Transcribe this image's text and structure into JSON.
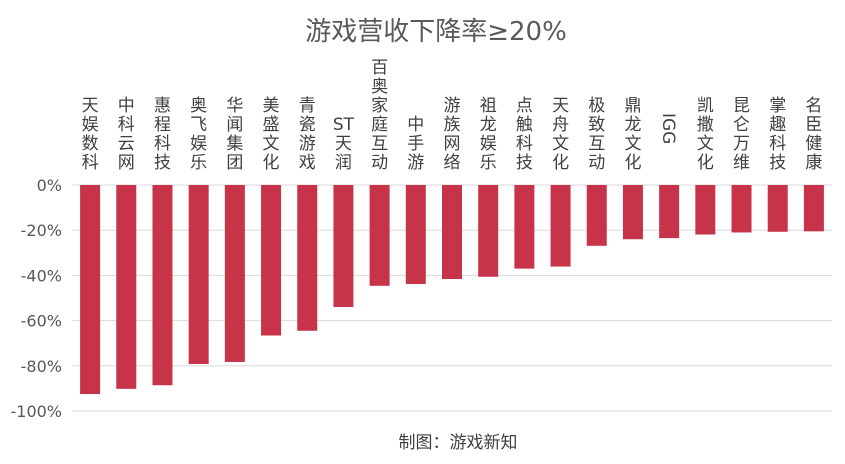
{
  "chart_data": {
    "type": "bar",
    "title": "游戏营收下降率≥20%",
    "credit": "制图：游戏新知",
    "categories": [
      "天娱数科",
      "中科云网",
      "惠程科技",
      "奥飞娱乐",
      "华闻集团",
      "美盛文化",
      "青瓷游戏",
      "ST天润",
      "百奥家庭互动",
      "中手游",
      "游族网络",
      "祖龙娱乐",
      "点触科技",
      "天舟文化",
      "极致互动",
      "鼎龙文化",
      "IGG",
      "凯撒文化",
      "昆仑万维",
      "掌趣科技",
      "名臣健康"
    ],
    "values": [
      -92.5,
      -90.2,
      -88.6,
      -79.2,
      -78.3,
      -66.6,
      -64.5,
      -54.0,
      -44.6,
      -43.8,
      -41.6,
      -40.6,
      -37.0,
      -36.1,
      -26.9,
      -24.0,
      -23.5,
      -21.9,
      -21.0,
      -20.7,
      -20.5
    ],
    "ylim": [
      -100,
      0
    ],
    "yticks": [
      0,
      -20,
      -40,
      -60,
      -80,
      -100
    ],
    "ytick_labels": [
      "0%",
      "-20%",
      "-40%",
      "-60%",
      "-80%",
      "-100%"
    ],
    "bar_color": "#C7344A",
    "grid": true,
    "legend": "none"
  }
}
